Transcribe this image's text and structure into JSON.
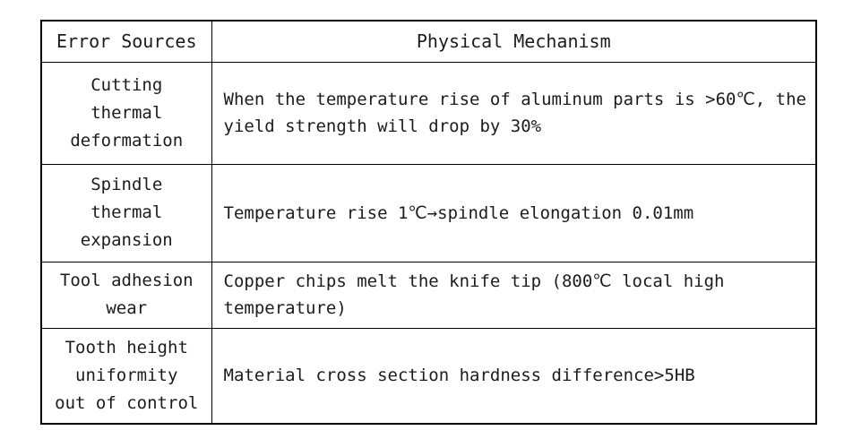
{
  "page": {
    "background_color": "#ffffff",
    "text_color": "#1c1c1c",
    "border_color": "#000000"
  },
  "table": {
    "columns": [
      {
        "label": "Error Sources"
      },
      {
        "label": "Physical Mechanism"
      }
    ],
    "rows": [
      {
        "error_source": "Cutting\nthermal\ndeformation",
        "mechanism": "When the temperature rise of aluminum parts is >60℃, the\nyield strength will drop by 30%"
      },
      {
        "error_source": "Spindle\nthermal\nexpansion",
        "mechanism": "Temperature rise 1℃→spindle elongation 0.01mm"
      },
      {
        "error_source": "Tool adhesion\nwear",
        "mechanism": "Copper chips melt the knife tip (800℃ local high\ntemperature)"
      },
      {
        "error_source": "Tooth height\nuniformity\nout of control",
        "mechanism": "Material cross section hardness difference>5HB"
      }
    ]
  }
}
